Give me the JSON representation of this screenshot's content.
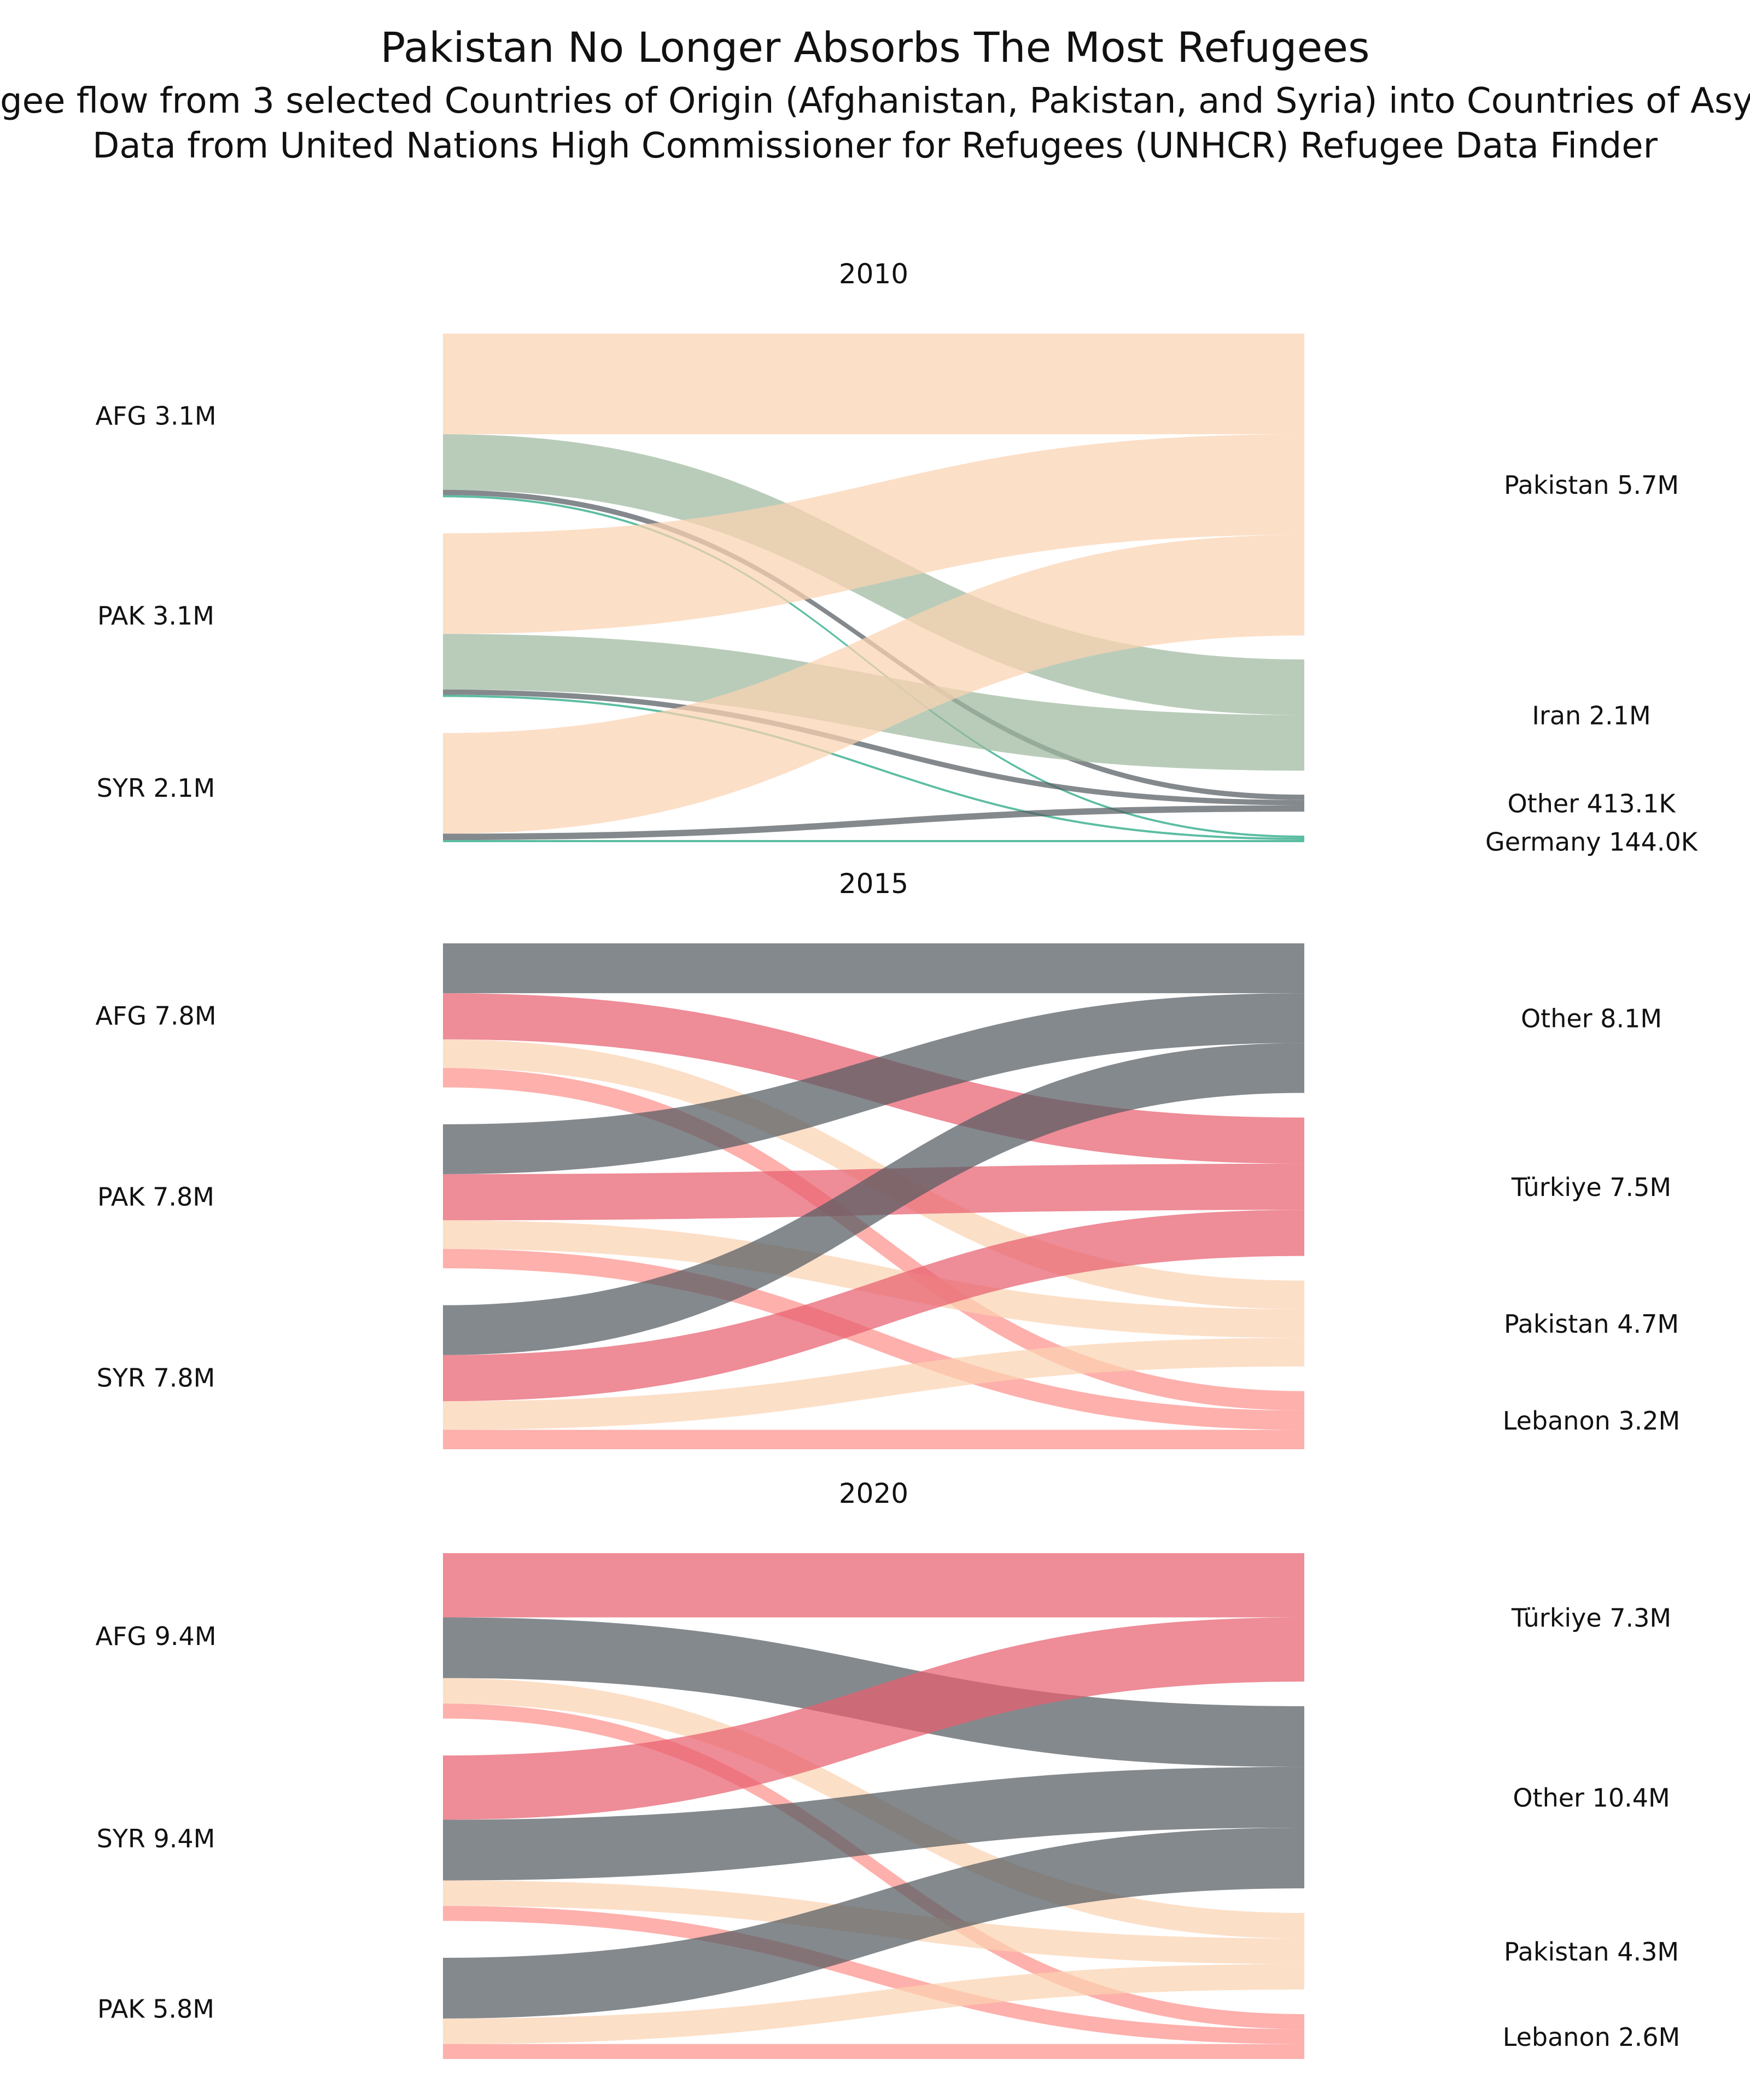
{
  "title": "Pakistan No Longer Absorbs The Most Refugees",
  "subtitle": "gee flow from 3 selected Countries of Origin (Afghanistan, Pakistan, and Syria) into Countries of Asy",
  "source": "Data from United Nations High Commissioner for Refugees (UNHCR) Refugee Data Finder",
  "colors": {
    "Pakistan": "#fbd2b1",
    "Iran": "#9eb89f",
    "Other": "#545c61",
    "Germany": "#40b192",
    "Türkiye": "#e8606f",
    "Lebanon": "#fe928c"
  },
  "chart_data": [
    {
      "type": "sankey",
      "title": "2010",
      "sources": [
        {
          "code": "AFG",
          "label": "AFG 3.1M"
        },
        {
          "code": "PAK",
          "label": "PAK 3.1M"
        },
        {
          "code": "SYR",
          "label": "SYR 2.1M"
        }
      ],
      "targets": [
        {
          "name": "Pakistan",
          "label": "Pakistan 5.7M"
        },
        {
          "name": "Iran",
          "label": "Iran 2.1M"
        },
        {
          "name": "Other",
          "label": "Other 413.1K"
        },
        {
          "name": "Germany",
          "label": "Germany 144.0K"
        }
      ],
      "flows": [
        {
          "from": "AFG",
          "to": "Pakistan",
          "value": 1.9
        },
        {
          "from": "AFG",
          "to": "Iran",
          "value": 1.05
        },
        {
          "from": "AFG",
          "to": "Other",
          "value": 0.1
        },
        {
          "from": "AFG",
          "to": "Germany",
          "value": 0.03
        },
        {
          "from": "PAK",
          "to": "Pakistan",
          "value": 1.9
        },
        {
          "from": "PAK",
          "to": "Iran",
          "value": 1.05
        },
        {
          "from": "PAK",
          "to": "Other",
          "value": 0.1
        },
        {
          "from": "PAK",
          "to": "Germany",
          "value": 0.03
        },
        {
          "from": "SYR",
          "to": "Pakistan",
          "value": 1.9
        },
        {
          "from": "SYR",
          "to": "Other",
          "value": 0.12
        },
        {
          "from": "SYR",
          "to": "Germany",
          "value": 0.03
        }
      ]
    },
    {
      "type": "sankey",
      "title": "2015",
      "sources": [
        {
          "code": "AFG",
          "label": "AFG 7.8M"
        },
        {
          "code": "PAK",
          "label": "PAK 7.8M"
        },
        {
          "code": "SYR",
          "label": "SYR 7.8M"
        }
      ],
      "targets": [
        {
          "name": "Other",
          "label": "Other 8.1M"
        },
        {
          "name": "Türkiye",
          "label": "Türkiye 7.5M"
        },
        {
          "name": "Pakistan",
          "label": "Pakistan 4.7M"
        },
        {
          "name": "Lebanon",
          "label": "Lebanon 3.2M"
        }
      ],
      "flows": [
        {
          "from": "AFG",
          "to": "Other",
          "value": 2.7
        },
        {
          "from": "AFG",
          "to": "Türkiye",
          "value": 2.5
        },
        {
          "from": "AFG",
          "to": "Pakistan",
          "value": 1.55
        },
        {
          "from": "AFG",
          "to": "Lebanon",
          "value": 1.05
        },
        {
          "from": "PAK",
          "to": "Other",
          "value": 2.7
        },
        {
          "from": "PAK",
          "to": "Türkiye",
          "value": 2.5
        },
        {
          "from": "PAK",
          "to": "Pakistan",
          "value": 1.55
        },
        {
          "from": "PAK",
          "to": "Lebanon",
          "value": 1.05
        },
        {
          "from": "SYR",
          "to": "Other",
          "value": 2.7
        },
        {
          "from": "SYR",
          "to": "Türkiye",
          "value": 2.5
        },
        {
          "from": "SYR",
          "to": "Pakistan",
          "value": 1.55
        },
        {
          "from": "SYR",
          "to": "Lebanon",
          "value": 1.05
        }
      ]
    },
    {
      "type": "sankey",
      "title": "2020",
      "sources": [
        {
          "code": "AFG",
          "label": "AFG 9.4M"
        },
        {
          "code": "SYR",
          "label": "SYR 9.4M"
        },
        {
          "code": "PAK",
          "label": "PAK 5.8M"
        }
      ],
      "targets": [
        {
          "name": "Türkiye",
          "label": "Türkiye 7.3M"
        },
        {
          "name": "Other",
          "label": "Other 10.4M"
        },
        {
          "name": "Pakistan",
          "label": "Pakistan 4.3M"
        },
        {
          "name": "Lebanon",
          "label": "Lebanon 2.6M"
        }
      ],
      "flows": [
        {
          "from": "AFG",
          "to": "Türkiye",
          "value": 3.65
        },
        {
          "from": "AFG",
          "to": "Other",
          "value": 3.45
        },
        {
          "from": "AFG",
          "to": "Pakistan",
          "value": 1.45
        },
        {
          "from": "AFG",
          "to": "Lebanon",
          "value": 0.85
        },
        {
          "from": "SYR",
          "to": "Türkiye",
          "value": 3.65
        },
        {
          "from": "SYR",
          "to": "Other",
          "value": 3.45
        },
        {
          "from": "SYR",
          "to": "Pakistan",
          "value": 1.45
        },
        {
          "from": "SYR",
          "to": "Lebanon",
          "value": 0.85
        },
        {
          "from": "PAK",
          "to": "Other",
          "value": 3.45
        },
        {
          "from": "PAK",
          "to": "Pakistan",
          "value": 1.45
        },
        {
          "from": "PAK",
          "to": "Lebanon",
          "value": 0.85
        }
      ]
    }
  ]
}
